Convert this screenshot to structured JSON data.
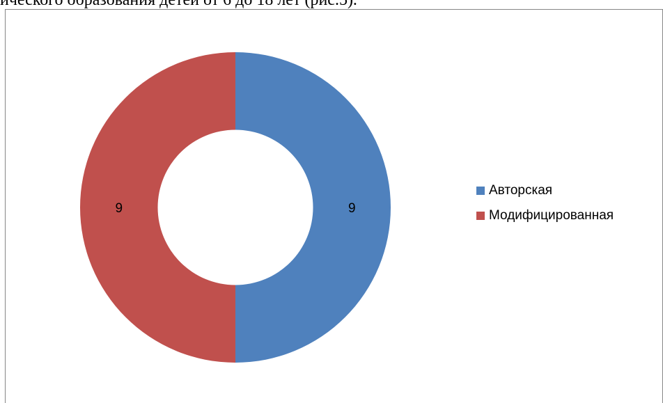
{
  "document": {
    "text_line": "ического образования детей от 6 до 18 лет (рис.5)."
  },
  "chart_data": {
    "type": "pie",
    "variant": "doughnut",
    "categories": [
      "Авторская",
      "Модифицированная"
    ],
    "values": [
      9,
      9
    ],
    "colors": [
      "#4f81bd",
      "#c0504d"
    ],
    "data_labels": [
      "9",
      "9"
    ],
    "legend_placement": "right",
    "start_angle_deg": 0,
    "direction": "clockwise",
    "hole_ratio": 0.5
  }
}
